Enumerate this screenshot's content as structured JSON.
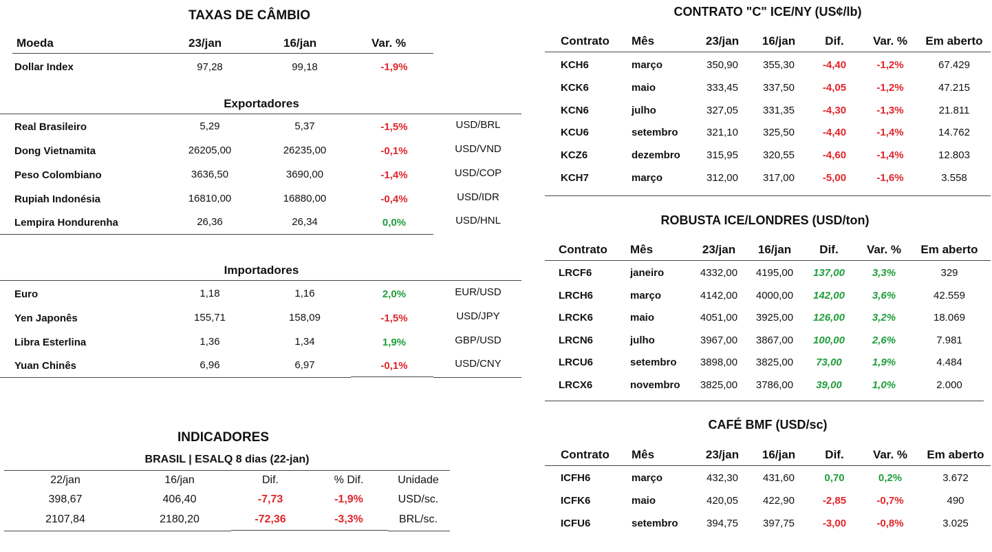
{
  "taxas": {
    "title": "TAXAS DE CÂMBIO",
    "headers": {
      "moeda": "Moeda",
      "d1": "23/jan",
      "d2": "16/jan",
      "var": "Var. %"
    },
    "dollar": {
      "name": "Dollar Index",
      "v1": "97,28",
      "v2": "99,18",
      "var": "-1,9%"
    },
    "exportadores": {
      "title": "Exportadores",
      "rows": [
        {
          "name": "Real Brasileiro",
          "v1": "5,29",
          "v2": "5,37",
          "var": "-1,5%",
          "pair": "USD/BRL"
        },
        {
          "name": "Dong Vietnamita",
          "v1": "26205,00",
          "v2": "26235,00",
          "var": "-0,1%",
          "pair": "USD/VND"
        },
        {
          "name": "Peso Colombiano",
          "v1": "3636,50",
          "v2": "3690,00",
          "var": "-1,4%",
          "pair": "USD/COP"
        },
        {
          "name": "Rupiah Indonésia",
          "v1": "16810,00",
          "v2": "16880,00",
          "var": "-0,4%",
          "pair": "USD/IDR"
        },
        {
          "name": "Lempira Hondurenha",
          "v1": "26,36",
          "v2": "26,34",
          "var": "0,0%",
          "pair": "USD/HNL"
        }
      ]
    },
    "importadores": {
      "title": "Importadores",
      "rows": [
        {
          "name": "Euro",
          "v1": "1,18",
          "v2": "1,16",
          "var": "2,0%",
          "pair": "EUR/USD"
        },
        {
          "name": "Yen Japonês",
          "v1": "155,71",
          "v2": "158,09",
          "var": "-1,5%",
          "pair": "USD/JPY"
        },
        {
          "name": "Libra Esterlina",
          "v1": "1,36",
          "v2": "1,34",
          "var": "1,9%",
          "pair": "GBP/USD"
        },
        {
          "name": "Yuan Chinês",
          "v1": "6,96",
          "v2": "6,97",
          "var": "-0,1%",
          "pair": "USD/CNY"
        }
      ]
    }
  },
  "indicadores": {
    "title": "INDICADORES",
    "subtitle": "BRASIL | ESALQ 8 dias (22-jan)",
    "headers": [
      "22/jan",
      "16/jan",
      "Dif.",
      "% Dif.",
      "Unidade"
    ],
    "rows": [
      [
        "398,67",
        "406,40",
        "-7,73",
        "-1,9%",
        "USD/sc."
      ],
      [
        "2107,84",
        "2180,20",
        "-72,36",
        "-3,3%",
        "BRL/sc."
      ]
    ]
  },
  "contrato_c": {
    "title": "CONTRATO \"C\" ICE/NY (US¢/lb)",
    "headers": [
      "Contrato",
      "Mês",
      "23/jan",
      "16/jan",
      "Dif.",
      "Var. %",
      "Em aberto"
    ],
    "rows": [
      [
        "KCH6",
        "março",
        "350,90",
        "355,30",
        "-4,40",
        "-1,2%",
        "67.429"
      ],
      [
        "KCK6",
        "maio",
        "333,45",
        "337,50",
        "-4,05",
        "-1,2%",
        "47.215"
      ],
      [
        "KCN6",
        "julho",
        "327,05",
        "331,35",
        "-4,30",
        "-1,3%",
        "21.811"
      ],
      [
        "KCU6",
        "setembro",
        "321,10",
        "325,50",
        "-4,40",
        "-1,4%",
        "14.762"
      ],
      [
        "KCZ6",
        "dezembro",
        "315,95",
        "320,55",
        "-4,60",
        "-1,4%",
        "12.803"
      ],
      [
        "KCH7",
        "março",
        "312,00",
        "317,00",
        "-5,00",
        "-1,6%",
        "3.558"
      ]
    ]
  },
  "robusta": {
    "title": "ROBUSTA ICE/LONDRES (USD/ton)",
    "headers": [
      "Contrato",
      "Mês",
      "23/jan",
      "16/jan",
      "Dif.",
      "Var. %",
      "Em aberto"
    ],
    "rows": [
      [
        "LRCF6",
        "janeiro",
        "4332,00",
        "4195,00",
        "137,00",
        "3,3%",
        "329"
      ],
      [
        "LRCH6",
        "março",
        "4142,00",
        "4000,00",
        "142,00",
        "3,6%",
        "42.559"
      ],
      [
        "LRCK6",
        "maio",
        "4051,00",
        "3925,00",
        "126,00",
        "3,2%",
        "18.069"
      ],
      [
        "LRCN6",
        "julho",
        "3967,00",
        "3867,00",
        "100,00",
        "2,6%",
        "7.981"
      ],
      [
        "LRCU6",
        "setembro",
        "3898,00",
        "3825,00",
        "73,00",
        "1,9%",
        "4.484"
      ],
      [
        "LRCX6",
        "novembro",
        "3825,00",
        "3786,00",
        "39,00",
        "1,0%",
        "2.000"
      ]
    ]
  },
  "cafe_bmf": {
    "title": "CAFÉ BMF (USD/sc)",
    "headers": [
      "Contrato",
      "Mês",
      "23/jan",
      "16/jan",
      "Dif.",
      "Var. %",
      "Em aberto"
    ],
    "rows": [
      [
        "ICFH6",
        "março",
        "432,30",
        "431,60",
        "0,70",
        "0,2%",
        "3.672"
      ],
      [
        "ICFK6",
        "maio",
        "420,05",
        "422,90",
        "-2,85",
        "-0,7%",
        "490"
      ],
      [
        "ICFU6",
        "setembro",
        "394,75",
        "397,75",
        "-3,00",
        "-0,8%",
        "3.025"
      ]
    ]
  },
  "colors": {
    "negative": "#e0242a",
    "positive": "#1f9d3a",
    "rule": "#444444"
  }
}
